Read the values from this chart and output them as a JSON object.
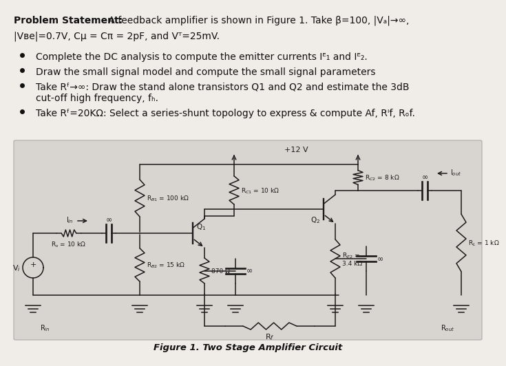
{
  "bg_color": "#f0ede8",
  "circuit_bg": "#d8d5d0",
  "line_color": "#1a1a1a",
  "text_color": "#111111",
  "problem_bold": "Problem Statement:",
  "problem_rest": " A feedback amplifier is shown in Figure 1. Take β=100, |Vₐ|→∞,",
  "line2": "|Vве|=0.7V, Cμ = Cπ = 2pF, and Vᵀ=25mV.",
  "bullet1": "Complete the DC analysis to compute the emitter currents Iᴱ₁ and Iᴱ₂.",
  "bullet2": "Draw the small signal model and compute the small signal parameters",
  "bullet3a": "Take Rᶠ→∞: Draw the stand alone transistors Q1 and Q2 and estimate the 3dB",
  "bullet3b": "cut-off high frequency, fₕ.",
  "bullet4": "Take Rᶠ=20KΩ: Select a series-shunt topology to express & compute Af, Rᴵf, Rₒf.",
  "fig_caption": "Figure 1. Two Stage Amplifier Circuit",
  "vcc_label": "+12 V",
  "rb1_label": "R$_{B1}$ = 100 kΩ",
  "rb2_label": "R$_{B2}$ = 15 kΩ",
  "rc1_label": "R$_{C1}$ = 10 kΩ",
  "rc2_label": "R$_{C2}$ = 8 kΩ",
  "re1_label": "870 Ω",
  "re2_label": "R$_{E2}$ =\n3.4 kΩ",
  "rl_label": "R$_L$ = 1 kΩ",
  "rs_label": "R$_s$ = 10 kΩ",
  "rf_label": "R$_f$",
  "q1_label": "Q$_1$",
  "q2_label": "Q$_2$",
  "vi_label": "V$_i$",
  "iin_label": "I$_{in}$",
  "iout_label": "I$_{out}$",
  "rin_label": "R$_{in}$",
  "rout_label": "R$_{out}$",
  "inf_symbol": "∞"
}
